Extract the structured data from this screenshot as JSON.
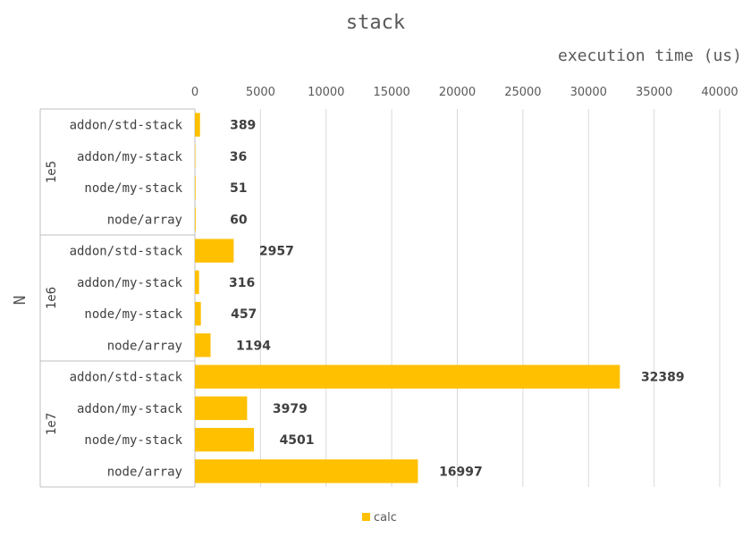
{
  "chart_data": {
    "type": "bar",
    "orientation": "horizontal",
    "title": "stack",
    "xlabel": "execution time (us)",
    "ylabel": "N",
    "xlim": [
      0,
      40000
    ],
    "x_ticks": [
      "0",
      "5000",
      "10000",
      "15000",
      "20000",
      "25000",
      "30000",
      "35000",
      "40000"
    ],
    "x_axis_position": "top",
    "grid": true,
    "legend": {
      "position": "bottom",
      "entries": [
        "calc"
      ]
    },
    "bar_color": "#FFC000",
    "groups": [
      {
        "name": "1e5",
        "categories": [
          "addon/std-stack",
          "addon/my-stack",
          "node/my-stack",
          "node/array"
        ],
        "values": [
          389,
          36,
          51,
          60
        ]
      },
      {
        "name": "1e6",
        "categories": [
          "addon/std-stack",
          "addon/my-stack",
          "node/my-stack",
          "node/array"
        ],
        "values": [
          2957,
          316,
          457,
          1194
        ]
      },
      {
        "name": "1e7",
        "categories": [
          "addon/std-stack",
          "addon/my-stack",
          "node/my-stack",
          "node/array"
        ],
        "values": [
          32389,
          3979,
          4501,
          16997
        ]
      }
    ],
    "series": [
      {
        "name": "calc",
        "values": [
          389,
          36,
          51,
          60,
          2957,
          316,
          457,
          1194,
          32389,
          3979,
          4501,
          16997
        ]
      }
    ]
  }
}
